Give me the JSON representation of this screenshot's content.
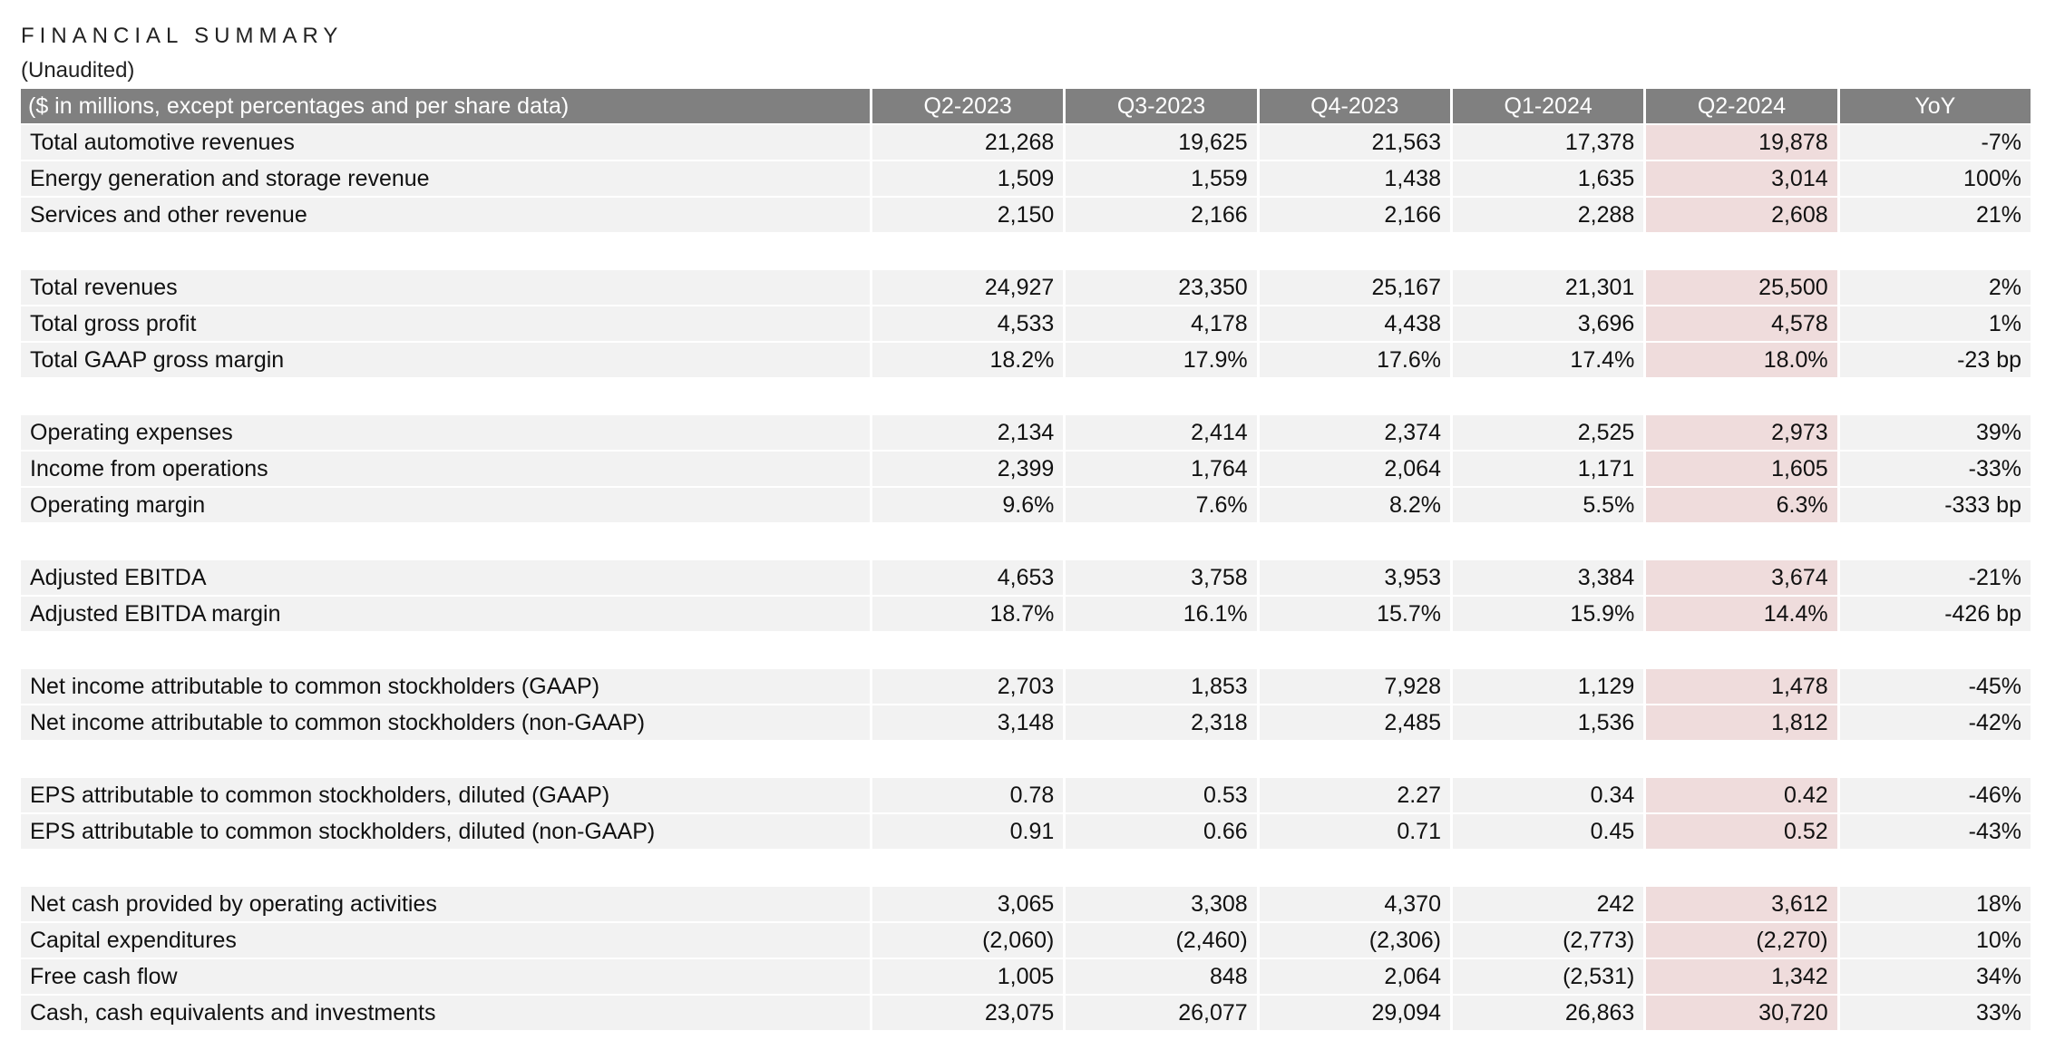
{
  "header": {
    "title": "FINANCIAL SUMMARY",
    "subtitle": "(Unaudited)"
  },
  "table": {
    "columns": [
      "($ in millions, except percentages and per share data)",
      "Q2-2023",
      "Q3-2023",
      "Q4-2023",
      "Q1-2024",
      "Q2-2024",
      "YoY"
    ],
    "groups": [
      [
        [
          "Total automotive revenues",
          "21,268",
          "19,625",
          "21,563",
          "17,378",
          "19,878",
          "-7%"
        ],
        [
          "Energy generation and storage revenue",
          "1,509",
          "1,559",
          "1,438",
          "1,635",
          "3,014",
          "100%"
        ],
        [
          "Services and other revenue",
          "2,150",
          "2,166",
          "2,166",
          "2,288",
          "2,608",
          "21%"
        ]
      ],
      [
        [
          "Total revenues",
          "24,927",
          "23,350",
          "25,167",
          "21,301",
          "25,500",
          "2%"
        ],
        [
          "Total gross profit",
          "4,533",
          "4,178",
          "4,438",
          "3,696",
          "4,578",
          "1%"
        ],
        [
          "Total GAAP gross margin",
          "18.2%",
          "17.9%",
          "17.6%",
          "17.4%",
          "18.0%",
          "-23 bp"
        ]
      ],
      [
        [
          "Operating expenses",
          "2,134",
          "2,414",
          "2,374",
          "2,525",
          "2,973",
          "39%"
        ],
        [
          "Income from operations",
          "2,399",
          "1,764",
          "2,064",
          "1,171",
          "1,605",
          "-33%"
        ],
        [
          "Operating margin",
          "9.6%",
          "7.6%",
          "8.2%",
          "5.5%",
          "6.3%",
          "-333 bp"
        ]
      ],
      [
        [
          "Adjusted EBITDA",
          "4,653",
          "3,758",
          "3,953",
          "3,384",
          "3,674",
          "-21%"
        ],
        [
          "Adjusted EBITDA margin",
          "18.7%",
          "16.1%",
          "15.7%",
          "15.9%",
          "14.4%",
          "-426 bp"
        ]
      ],
      [
        [
          "Net income attributable to common stockholders (GAAP)",
          "2,703",
          "1,853",
          "7,928",
          "1,129",
          "1,478",
          "-45%"
        ],
        [
          "Net income attributable to common stockholders (non-GAAP)",
          "3,148",
          "2,318",
          "2,485",
          "1,536",
          "1,812",
          "-42%"
        ]
      ],
      [
        [
          "EPS attributable to common stockholders, diluted (GAAP)",
          "0.78",
          "0.53",
          "2.27",
          "0.34",
          "0.42",
          "-46%"
        ],
        [
          "EPS attributable to common stockholders, diluted (non-GAAP)",
          "0.91",
          "0.66",
          "0.71",
          "0.45",
          "0.52",
          "-43%"
        ]
      ],
      [
        [
          "Net cash provided by operating activities",
          "3,065",
          "3,308",
          "4,370",
          "242",
          "3,612",
          "18%"
        ],
        [
          "Capital expenditures",
          "(2,060)",
          "(2,460)",
          "(2,306)",
          "(2,773)",
          "(2,270)",
          "10%"
        ],
        [
          "Free cash flow",
          "1,005",
          "848",
          "2,064",
          "(2,531)",
          "1,342",
          "34%"
        ],
        [
          "Cash, cash equivalents and investments",
          "23,075",
          "26,077",
          "29,094",
          "26,863",
          "30,720",
          "33%"
        ]
      ]
    ]
  }
}
